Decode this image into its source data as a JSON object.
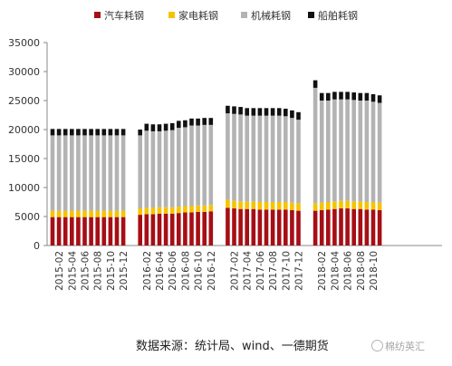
{
  "chart_data": {
    "type": "bar",
    "stacked": true,
    "title": "",
    "xlabel": "",
    "ylabel": "",
    "ylim": [
      0,
      35000
    ],
    "yticks": [
      0,
      5000,
      10000,
      15000,
      20000,
      25000,
      30000,
      35000
    ],
    "grid": false,
    "legend_position": "top",
    "categories": [
      "2015-01",
      "2015-02",
      "2015-03",
      "2015-04",
      "2015-05",
      "2015-06",
      "2015-07",
      "2015-08",
      "2015-09",
      "2015-10",
      "2015-11",
      "2015-12",
      "2016-01",
      "2016-02",
      "2016-03",
      "2016-04",
      "2016-05",
      "2016-06",
      "2016-07",
      "2016-08",
      "2016-09",
      "2016-10",
      "2016-11",
      "2016-12",
      "2017-01",
      "2017-02",
      "2017-03",
      "2017-04",
      "2017-05",
      "2017-06",
      "2017-07",
      "2017-08",
      "2017-09",
      "2017-10",
      "2017-11",
      "2017-12",
      "2018-01",
      "2018-02",
      "2018-03",
      "2018-04",
      "2018-05",
      "2018-06",
      "2018-07",
      "2018-08",
      "2018-09",
      "2018-10",
      "2018-11"
    ],
    "tick_labels": [
      "2015-02",
      "2015-04",
      "2015-06",
      "2015-08",
      "2015-10",
      "2015-12",
      "2016-02",
      "2016-04",
      "2016-06",
      "2016-08",
      "2016-10",
      "2016-12",
      "2017-02",
      "2017-04",
      "2017-06",
      "2017-08",
      "2017-10",
      "2017-12",
      "2018-02",
      "2018-04",
      "2018-06",
      "2018-08",
      "2018-10"
    ],
    "series": [
      {
        "name": "汽车耗钢",
        "color": "#a50f15",
        "values": [
          4900,
          4900,
          4900,
          4900,
          4900,
          4900,
          4900,
          4900,
          4900,
          4900,
          4900,
          4900,
          5300,
          5400,
          5400,
          5500,
          5500,
          5500,
          5600,
          5700,
          5700,
          5800,
          5800,
          5900,
          6500,
          6400,
          6300,
          6300,
          6300,
          6200,
          6200,
          6200,
          6200,
          6200,
          6100,
          6000,
          6000,
          6100,
          6200,
          6300,
          6400,
          6400,
          6300,
          6300,
          6200,
          6200,
          6100
        ]
      },
      {
        "name": "家电耗钢",
        "color": "#f5c400",
        "values": [
          1100,
          1100,
          1100,
          1100,
          1100,
          1100,
          1100,
          1100,
          1100,
          1100,
          1100,
          1100,
          1100,
          1100,
          1100,
          1100,
          1100,
          1100,
          1100,
          1100,
          1100,
          1100,
          1100,
          1100,
          1400,
          1300,
          1300,
          1300,
          1300,
          1300,
          1300,
          1300,
          1300,
          1300,
          1300,
          1300,
          1300,
          1300,
          1300,
          1300,
          1300,
          1300,
          1300,
          1300,
          1300,
          1300,
          1300
        ]
      },
      {
        "name": "机械耗钢",
        "color": "#b3b3b3",
        "values": [
          13000,
          13000,
          13000,
          13000,
          13000,
          13000,
          13000,
          13000,
          13000,
          13000,
          13000,
          13000,
          12600,
          13300,
          13200,
          13100,
          13200,
          13300,
          13600,
          13600,
          13900,
          13800,
          13900,
          13800,
          14900,
          15000,
          15000,
          14800,
          14800,
          14900,
          14900,
          14900,
          14900,
          14800,
          14600,
          14400,
          19900,
          17600,
          17500,
          17600,
          17500,
          17500,
          17500,
          17400,
          17500,
          17300,
          17200
        ]
      },
      {
        "name": "船舶耗钢",
        "color": "#111111",
        "values": [
          1100,
          1100,
          1100,
          1100,
          1100,
          1100,
          1100,
          1100,
          1100,
          1100,
          1100,
          1100,
          1000,
          1200,
          1200,
          1200,
          1200,
          1200,
          1200,
          1200,
          1200,
          1200,
          1200,
          1200,
          1300,
          1300,
          1300,
          1300,
          1300,
          1300,
          1300,
          1300,
          1300,
          1300,
          1300,
          1300,
          1300,
          1300,
          1300,
          1300,
          1300,
          1300,
          1300,
          1300,
          1300,
          1300,
          1300
        ]
      }
    ]
  },
  "source_note": "数据来源：统计局、wind、一德期货",
  "watermark": "棉纺英汇"
}
